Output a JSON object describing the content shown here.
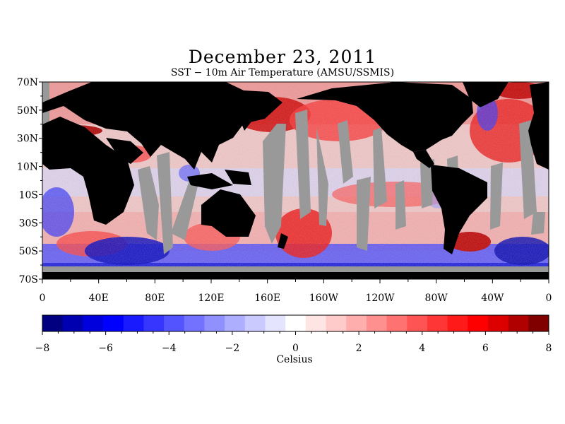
{
  "title": "December 23, 2011",
  "subtitle": "SST − 10m Air Temperature (AMSU/SSMIS)",
  "map": {
    "lat_labels": [
      "70N",
      "50N",
      "30N",
      "10N",
      "10S",
      "30S",
      "50S",
      "70S"
    ],
    "lon_labels": [
      "0",
      "40E",
      "80E",
      "120E",
      "160E",
      "160W",
      "120W",
      "80W",
      "40W",
      "0"
    ],
    "lat_range": [
      -70,
      70
    ],
    "lon_range": [
      0,
      360
    ],
    "land_color": "#000000",
    "missing_color": "#999999"
  },
  "colorbar": {
    "tick_labels": [
      "−8",
      "−6",
      "−4",
      "−2",
      "0",
      "2",
      "4",
      "6",
      "8"
    ],
    "range": [
      -8,
      8
    ],
    "label": "Celsius",
    "colors": [
      "#000080",
      "#0000b0",
      "#0000dc",
      "#0000ff",
      "#1a1aff",
      "#3636ff",
      "#5454ff",
      "#7272ff",
      "#9090ff",
      "#aeaeff",
      "#cacaff",
      "#e4e4ff",
      "#ffffff",
      "#ffe4e4",
      "#ffcaca",
      "#ffaeae",
      "#ff9090",
      "#ff7272",
      "#ff5454",
      "#ff3636",
      "#ff1a1a",
      "#ff0000",
      "#dc0000",
      "#b00000",
      "#800000"
    ]
  }
}
